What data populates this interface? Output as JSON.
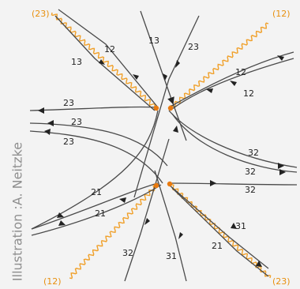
{
  "credit": "Illustration :A. Neitzke",
  "colors": {
    "line": "#4a4a4a",
    "wavy": "#f0a02a",
    "dot": "#e87a10",
    "label_orange": "#e8900f"
  },
  "labels": {
    "c23_top_left": "(23)",
    "c12_top_right": "(12)",
    "c12_bottom_left": "(12)",
    "c23_bottom_right": "(23)",
    "l12_a": "12",
    "l13_a": "13",
    "l13_b": "13",
    "l23_a": "23",
    "l12_b": "12",
    "l12_c": "12",
    "l23_b": "23",
    "l23_c": "23",
    "l23_d": "23",
    "l32_a": "32",
    "l32_b": "32",
    "l32_c": "32",
    "l21_a": "21",
    "l21_b": "21",
    "l31_a": "31",
    "l32_d": "32",
    "l31_b": "31",
    "l21_c": "21"
  }
}
